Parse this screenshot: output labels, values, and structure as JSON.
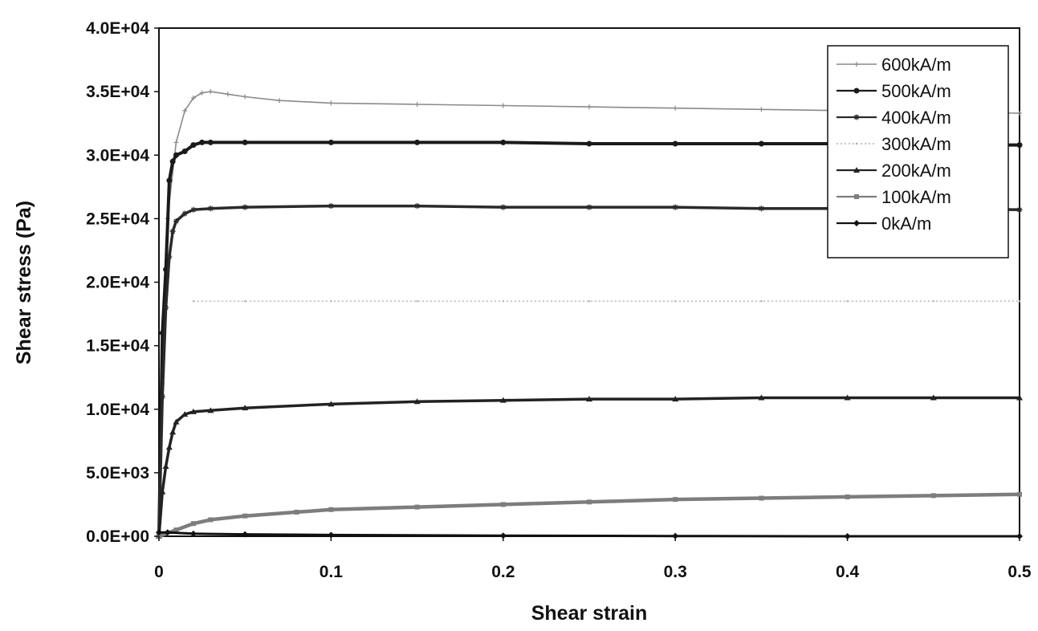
{
  "chart_data": {
    "type": "line",
    "title": "",
    "xlabel": "Shear strain",
    "ylabel": "Shear stress (Pa)",
    "xlim": [
      0,
      0.5
    ],
    "ylim": [
      0,
      40000
    ],
    "x_ticks": [
      0,
      0.1,
      0.2,
      0.3,
      0.4,
      0.5
    ],
    "x_tick_labels": [
      "0",
      "0.1",
      "0.2",
      "0.3",
      "0.4",
      "0.5"
    ],
    "y_ticks": [
      0,
      5000,
      10000,
      15000,
      20000,
      25000,
      30000,
      35000,
      40000
    ],
    "y_tick_labels": [
      "0.0E+00",
      "5.0E+03",
      "1.0E+04",
      "1.5E+04",
      "2.0E+04",
      "2.5E+04",
      "3.0E+04",
      "3.5E+04",
      "4.0E+04"
    ],
    "grid": false,
    "legend_position": "top-right",
    "series": [
      {
        "name": "600kA/m",
        "color": "#8a8a8a",
        "x": [
          0,
          0.002,
          0.005,
          0.01,
          0.015,
          0.02,
          0.025,
          0.03,
          0.04,
          0.05,
          0.07,
          0.1,
          0.15,
          0.2,
          0.25,
          0.3,
          0.35,
          0.4,
          0.45,
          0.5
        ],
        "y": [
          0,
          12000,
          25000,
          31000,
          33500,
          34500,
          34900,
          35000,
          34800,
          34600,
          34300,
          34100,
          34000,
          33900,
          33800,
          33700,
          33600,
          33500,
          33400,
          33300
        ]
      },
      {
        "name": "500kA/m",
        "color": "#1a1a1a",
        "x": [
          0,
          0.002,
          0.004,
          0.006,
          0.008,
          0.01,
          0.015,
          0.02,
          0.025,
          0.03,
          0.05,
          0.1,
          0.15,
          0.2,
          0.25,
          0.3,
          0.35,
          0.4,
          0.45,
          0.5
        ],
        "y": [
          0,
          16000,
          21000,
          28000,
          29500,
          30000,
          30300,
          30800,
          31000,
          31000,
          31000,
          31000,
          31000,
          31000,
          30900,
          30900,
          30900,
          30900,
          30800,
          30800
        ]
      },
      {
        "name": "400kA/m",
        "color": "#2a2a2a",
        "x": [
          0,
          0.002,
          0.004,
          0.006,
          0.008,
          0.01,
          0.015,
          0.02,
          0.03,
          0.05,
          0.1,
          0.15,
          0.2,
          0.25,
          0.3,
          0.35,
          0.4,
          0.45,
          0.5
        ],
        "y": [
          0,
          11000,
          18000,
          22000,
          24000,
          24800,
          25400,
          25700,
          25800,
          25900,
          26000,
          26000,
          25900,
          25900,
          25900,
          25800,
          25800,
          25800,
          25700
        ]
      },
      {
        "name": "300kA/m",
        "color": "#b0b0b0",
        "x": [
          0.02,
          0.05,
          0.1,
          0.15,
          0.2,
          0.25,
          0.3,
          0.35,
          0.4,
          0.45,
          0.5
        ],
        "y": [
          18500,
          18500,
          18500,
          18500,
          18500,
          18500,
          18500,
          18500,
          18500,
          18500,
          18500
        ]
      },
      {
        "name": "200kA/m",
        "color": "#222222",
        "x": [
          0,
          0.002,
          0.004,
          0.006,
          0.008,
          0.01,
          0.015,
          0.02,
          0.03,
          0.05,
          0.1,
          0.15,
          0.2,
          0.25,
          0.3,
          0.35,
          0.4,
          0.45,
          0.5
        ],
        "y": [
          0,
          3500,
          5500,
          7000,
          8200,
          9000,
          9600,
          9800,
          9900,
          10100,
          10400,
          10600,
          10700,
          10800,
          10800,
          10900,
          10900,
          10900,
          10900
        ]
      },
      {
        "name": "100kA/m",
        "color": "#7d7d7d",
        "x": [
          0,
          0.01,
          0.02,
          0.03,
          0.05,
          0.08,
          0.1,
          0.15,
          0.2,
          0.25,
          0.3,
          0.35,
          0.4,
          0.45,
          0.5
        ],
        "y": [
          0,
          500,
          1000,
          1300,
          1600,
          1900,
          2100,
          2300,
          2500,
          2700,
          2900,
          3000,
          3100,
          3200,
          3300
        ]
      },
      {
        "name": "0kA/m",
        "color": "#111111",
        "x": [
          0,
          0.005,
          0.02,
          0.05,
          0.1,
          0.2,
          0.3,
          0.4,
          0.5
        ],
        "y": [
          300,
          300,
          200,
          150,
          100,
          50,
          20,
          0,
          0
        ]
      }
    ]
  }
}
